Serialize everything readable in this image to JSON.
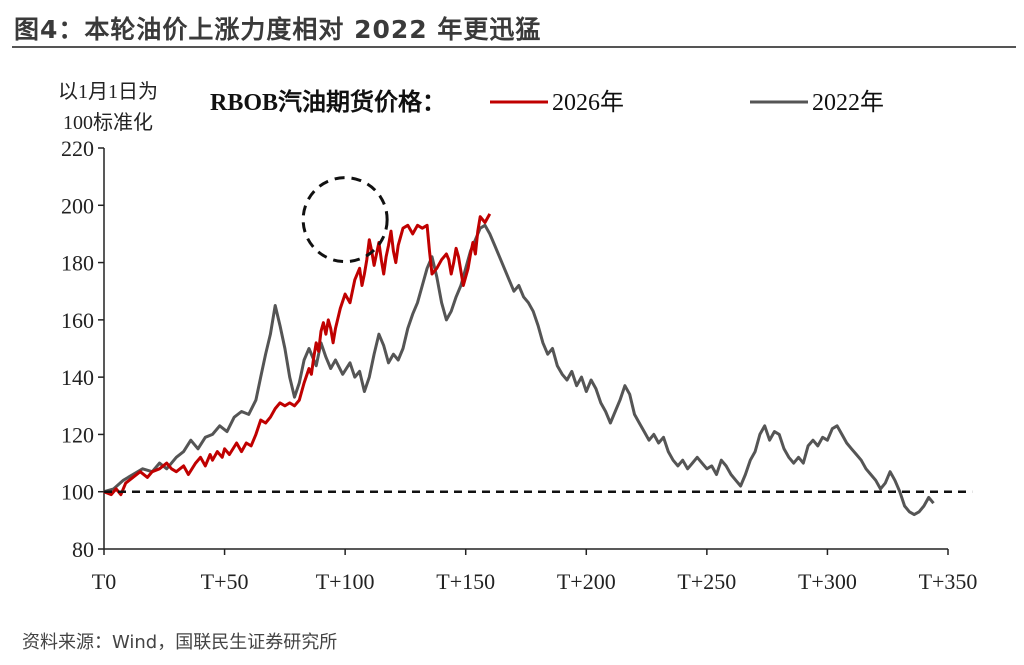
{
  "figure": {
    "title": "图4：本轮油价上涨力度相对 2022 年更迅猛",
    "source": "资料来源：Wind，国联民生证券研究所"
  },
  "chart_data": {
    "type": "line",
    "ylabel_line1": "以1月1日为",
    "ylabel_line2": "100标准化",
    "legend_title": "RBOB汽油期货价格：",
    "ylim": [
      80,
      220
    ],
    "yticks": [
      80,
      100,
      120,
      140,
      160,
      180,
      200,
      220
    ],
    "xlim": [
      0,
      350
    ],
    "xticks": [
      0,
      50,
      100,
      150,
      200,
      250,
      300,
      350
    ],
    "xtick_labels": [
      "T0",
      "T+50",
      "T+100",
      "T+150",
      "T+200",
      "T+250",
      "T+300",
      "T+350"
    ],
    "baseline": 100,
    "grid": false,
    "legend_position": "top",
    "highlight_circle": {
      "x": 100,
      "y": 195
    },
    "series": [
      {
        "name": "2026年",
        "color": "#c00000",
        "points": [
          [
            0,
            100
          ],
          [
            3,
            99
          ],
          [
            5,
            101
          ],
          [
            7,
            99
          ],
          [
            9,
            103
          ],
          [
            12,
            105
          ],
          [
            15,
            107
          ],
          [
            18,
            105
          ],
          [
            20,
            107
          ],
          [
            23,
            108
          ],
          [
            26,
            110
          ],
          [
            28,
            108
          ],
          [
            30,
            107
          ],
          [
            33,
            109
          ],
          [
            35,
            106
          ],
          [
            38,
            110
          ],
          [
            40,
            112
          ],
          [
            42,
            109
          ],
          [
            44,
            113
          ],
          [
            45,
            111
          ],
          [
            47,
            114
          ],
          [
            49,
            112
          ],
          [
            50,
            115
          ],
          [
            52,
            113
          ],
          [
            55,
            117
          ],
          [
            57,
            114
          ],
          [
            59,
            117
          ],
          [
            61,
            116
          ],
          [
            63,
            120
          ],
          [
            65,
            125
          ],
          [
            67,
            124
          ],
          [
            69,
            126
          ],
          [
            71,
            129
          ],
          [
            73,
            131
          ],
          [
            75,
            130
          ],
          [
            77,
            131
          ],
          [
            79,
            130
          ],
          [
            81,
            132
          ],
          [
            83,
            138
          ],
          [
            85,
            143
          ],
          [
            86,
            141
          ],
          [
            87,
            147
          ],
          [
            88,
            152
          ],
          [
            89,
            149
          ],
          [
            90,
            156
          ],
          [
            91,
            159
          ],
          [
            92,
            155
          ],
          [
            93,
            160
          ],
          [
            94,
            157
          ],
          [
            95,
            152
          ],
          [
            96,
            157
          ],
          [
            98,
            164
          ],
          [
            100,
            169
          ],
          [
            102,
            166
          ],
          [
            104,
            174
          ],
          [
            106,
            178
          ],
          [
            107,
            172
          ],
          [
            108,
            176
          ],
          [
            109,
            181
          ],
          [
            110,
            188
          ],
          [
            111,
            184
          ],
          [
            112,
            179
          ],
          [
            113,
            183
          ],
          [
            114,
            187
          ],
          [
            115,
            181
          ],
          [
            116,
            176
          ],
          [
            117,
            182
          ],
          [
            118,
            186
          ],
          [
            119,
            191
          ],
          [
            120,
            184
          ],
          [
            121,
            180
          ],
          [
            122,
            186
          ],
          [
            123,
            189
          ],
          [
            124,
            192
          ],
          [
            126,
            193
          ],
          [
            128,
            190
          ],
          [
            130,
            193
          ],
          [
            132,
            192
          ],
          [
            134,
            193
          ],
          [
            135,
            184
          ],
          [
            136,
            176
          ],
          [
            138,
            178
          ],
          [
            140,
            181
          ],
          [
            142,
            183
          ],
          [
            143,
            181
          ],
          [
            144,
            176
          ],
          [
            145,
            180
          ],
          [
            146,
            185
          ],
          [
            147,
            182
          ],
          [
            148,
            177
          ],
          [
            149,
            172
          ],
          [
            150,
            175
          ],
          [
            151,
            178
          ],
          [
            152,
            183
          ],
          [
            153,
            187
          ],
          [
            154,
            183
          ],
          [
            155,
            191
          ],
          [
            156,
            196
          ],
          [
            158,
            194
          ],
          [
            160,
            197
          ]
        ]
      },
      {
        "name": "2022年",
        "color": "#555555",
        "points": [
          [
            0,
            100
          ],
          [
            4,
            101
          ],
          [
            8,
            104
          ],
          [
            12,
            106
          ],
          [
            16,
            108
          ],
          [
            20,
            107
          ],
          [
            23,
            110
          ],
          [
            26,
            108
          ],
          [
            30,
            112
          ],
          [
            33,
            114
          ],
          [
            36,
            118
          ],
          [
            39,
            115
          ],
          [
            42,
            119
          ],
          [
            45,
            120
          ],
          [
            48,
            123
          ],
          [
            51,
            121
          ],
          [
            54,
            126
          ],
          [
            57,
            128
          ],
          [
            60,
            127
          ],
          [
            63,
            132
          ],
          [
            65,
            140
          ],
          [
            67,
            148
          ],
          [
            69,
            155
          ],
          [
            71,
            165
          ],
          [
            73,
            158
          ],
          [
            75,
            150
          ],
          [
            77,
            140
          ],
          [
            79,
            133
          ],
          [
            81,
            138
          ],
          [
            83,
            146
          ],
          [
            85,
            150
          ],
          [
            88,
            144
          ],
          [
            90,
            152
          ],
          [
            92,
            147
          ],
          [
            94,
            143
          ],
          [
            96,
            146
          ],
          [
            99,
            141
          ],
          [
            102,
            145
          ],
          [
            104,
            140
          ],
          [
            106,
            142
          ],
          [
            108,
            135
          ],
          [
            110,
            140
          ],
          [
            112,
            148
          ],
          [
            114,
            155
          ],
          [
            116,
            151
          ],
          [
            118,
            145
          ],
          [
            120,
            148
          ],
          [
            122,
            146
          ],
          [
            124,
            150
          ],
          [
            126,
            157
          ],
          [
            128,
            162
          ],
          [
            130,
            166
          ],
          [
            132,
            172
          ],
          [
            134,
            178
          ],
          [
            136,
            182
          ],
          [
            138,
            175
          ],
          [
            140,
            166
          ],
          [
            142,
            160
          ],
          [
            144,
            163
          ],
          [
            146,
            168
          ],
          [
            148,
            172
          ],
          [
            150,
            178
          ],
          [
            152,
            184
          ],
          [
            154,
            188
          ],
          [
            156,
            192
          ],
          [
            158,
            193
          ],
          [
            160,
            190
          ],
          [
            162,
            186
          ],
          [
            164,
            182
          ],
          [
            166,
            178
          ],
          [
            168,
            174
          ],
          [
            170,
            170
          ],
          [
            172,
            172
          ],
          [
            174,
            168
          ],
          [
            176,
            166
          ],
          [
            178,
            163
          ],
          [
            180,
            158
          ],
          [
            182,
            152
          ],
          [
            184,
            148
          ],
          [
            186,
            150
          ],
          [
            188,
            144
          ],
          [
            190,
            141
          ],
          [
            192,
            139
          ],
          [
            194,
            142
          ],
          [
            196,
            137
          ],
          [
            198,
            140
          ],
          [
            200,
            135
          ],
          [
            202,
            139
          ],
          [
            204,
            136
          ],
          [
            206,
            131
          ],
          [
            208,
            128
          ],
          [
            210,
            124
          ],
          [
            212,
            128
          ],
          [
            214,
            132
          ],
          [
            216,
            137
          ],
          [
            218,
            134
          ],
          [
            220,
            127
          ],
          [
            222,
            124
          ],
          [
            224,
            121
          ],
          [
            226,
            118
          ],
          [
            228,
            120
          ],
          [
            230,
            117
          ],
          [
            232,
            119
          ],
          [
            234,
            114
          ],
          [
            236,
            111
          ],
          [
            238,
            109
          ],
          [
            240,
            111
          ],
          [
            242,
            108
          ],
          [
            244,
            110
          ],
          [
            246,
            112
          ],
          [
            248,
            110
          ],
          [
            250,
            108
          ],
          [
            252,
            109
          ],
          [
            254,
            106
          ],
          [
            256,
            111
          ],
          [
            258,
            109
          ],
          [
            260,
            106
          ],
          [
            262,
            104
          ],
          [
            264,
            102
          ],
          [
            266,
            106
          ],
          [
            268,
            111
          ],
          [
            270,
            114
          ],
          [
            272,
            120
          ],
          [
            274,
            123
          ],
          [
            276,
            118
          ],
          [
            278,
            121
          ],
          [
            280,
            120
          ],
          [
            282,
            115
          ],
          [
            284,
            112
          ],
          [
            286,
            110
          ],
          [
            288,
            112
          ],
          [
            290,
            110
          ],
          [
            292,
            116
          ],
          [
            294,
            118
          ],
          [
            296,
            116
          ],
          [
            298,
            119
          ],
          [
            300,
            118
          ],
          [
            302,
            122
          ],
          [
            304,
            123
          ],
          [
            306,
            120
          ],
          [
            308,
            117
          ],
          [
            310,
            115
          ],
          [
            312,
            113
          ],
          [
            314,
            111
          ],
          [
            316,
            108
          ],
          [
            318,
            106
          ],
          [
            320,
            104
          ],
          [
            322,
            101
          ],
          [
            324,
            103
          ],
          [
            326,
            107
          ],
          [
            328,
            104
          ],
          [
            330,
            100
          ],
          [
            332,
            95
          ],
          [
            334,
            93
          ],
          [
            336,
            92
          ],
          [
            338,
            93
          ],
          [
            340,
            95
          ],
          [
            342,
            98
          ],
          [
            344,
            96
          ]
        ]
      }
    ]
  }
}
